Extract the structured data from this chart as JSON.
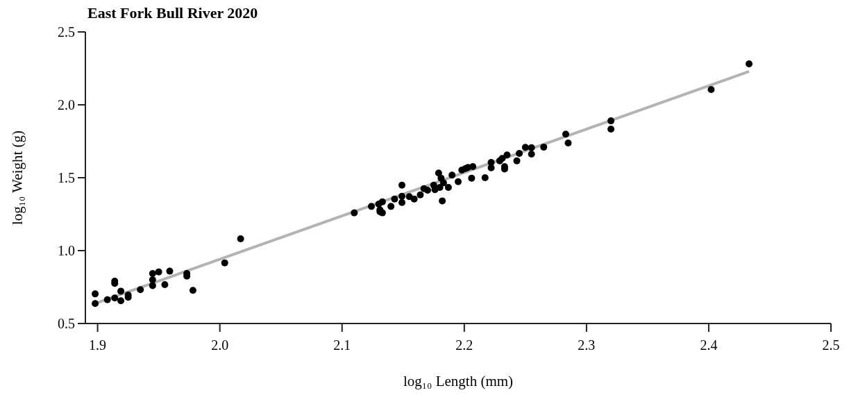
{
  "chart_data": {
    "type": "scatter",
    "title": "East Fork Bull River 2020",
    "xlabel": "log₁₀ Length (mm)",
    "ylabel": "log₁₀ Weight (g)",
    "xlim": [
      1.89,
      2.5
    ],
    "ylim": [
      0.5,
      2.5
    ],
    "xticks": [
      1.9,
      {
        "value": 2,
        "label": "2.0"
      },
      2.1,
      2.2,
      2.3,
      2.4,
      2.5
    ],
    "yticks": [
      0.5,
      {
        "value": 1,
        "label": "1.0"
      },
      1.5,
      {
        "value": 2,
        "label": "2.0"
      },
      2.5
    ],
    "grid": false,
    "marker": "circle",
    "series": [
      {
        "type": "line",
        "marker": "none",
        "color": "#b3b3b3",
        "x": [
          1.898,
          2.433
        ],
        "values": [
          0.637,
          2.229
        ]
      },
      {
        "color": "#000000",
        "x": [
          1.898,
          1.898,
          1.908,
          1.914,
          1.914,
          1.914,
          1.919,
          1.919,
          1.925,
          1.925,
          1.935,
          1.945,
          1.945,
          1.945,
          1.95,
          1.955,
          1.959,
          1.973,
          1.973,
          1.978,
          2.004,
          2.017,
          2.11,
          2.124,
          2.13,
          2.133,
          2.131,
          2.131,
          2.133,
          2.14,
          2.143,
          2.149,
          2.149,
          2.149,
          2.155,
          2.159,
          2.164,
          2.167,
          2.17,
          2.175,
          2.176,
          2.179,
          2.18,
          2.181,
          2.182,
          2.183,
          2.187,
          2.19,
          2.195,
          2.198,
          2.201,
          2.203,
          2.207,
          2.206,
          2.217,
          2.222,
          2.222,
          2.229,
          2.231,
          2.233,
          2.233,
          2.235,
          2.243,
          2.245,
          2.25,
          2.255,
          2.255,
          2.265,
          2.283,
          2.285,
          2.32,
          2.32,
          2.402,
          2.433
        ],
        "values": [
          0.703,
          0.637,
          0.663,
          0.79,
          0.775,
          0.675,
          0.722,
          0.656,
          0.695,
          0.68,
          0.732,
          0.843,
          0.8,
          0.76,
          0.854,
          0.767,
          0.859,
          0.843,
          0.825,
          0.727,
          0.916,
          1.081,
          1.259,
          1.303,
          1.319,
          1.335,
          1.279,
          1.267,
          1.259,
          1.303,
          1.354,
          1.449,
          1.373,
          1.33,
          1.37,
          1.354,
          1.382,
          1.425,
          1.414,
          1.449,
          1.418,
          1.532,
          1.433,
          1.497,
          1.341,
          1.465,
          1.433,
          1.518,
          1.473,
          1.552,
          1.563,
          1.57,
          1.576,
          1.497,
          1.5,
          1.605,
          1.568,
          1.616,
          1.632,
          1.56,
          1.576,
          1.656,
          1.616,
          1.667,
          1.708,
          1.706,
          1.662,
          1.71,
          1.799,
          1.738,
          1.89,
          1.833,
          2.105,
          2.281
        ]
      }
    ]
  }
}
